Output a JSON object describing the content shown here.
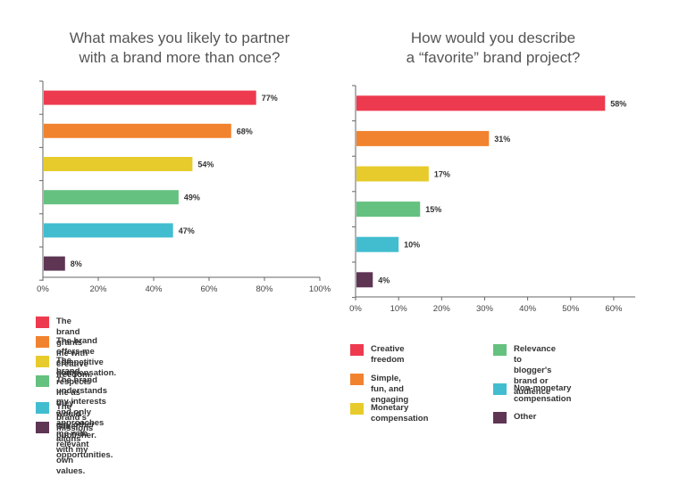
{
  "colors": {
    "red": "#ee3a4f",
    "orange": "#f1832f",
    "yellow": "#e7cb2c",
    "green": "#65c17f",
    "teal": "#42bdd0",
    "purple": "#5e3553",
    "axis": "#666666",
    "title": "#555555"
  },
  "chart_data": [
    {
      "type": "bar",
      "orientation": "horizontal",
      "title": "What makes you likely to partner with a brand more than once?",
      "title_lines": [
        "What makes you likely to partner",
        "with a brand more than once?"
      ],
      "categories": [
        "The brand grants me with creative freedom.",
        "The brand offers me competitive compensation.",
        "The brand respects me as they would any other publisher.",
        "The brand understands my interests and only approaches me with relevant opportunities.",
        "The brand's missions aligns with my own values.",
        "Other"
      ],
      "values": [
        77,
        68,
        54,
        49,
        47,
        8
      ],
      "value_labels": [
        "77%",
        "68%",
        "54%",
        "49%",
        "47%",
        "8%"
      ],
      "xlim": [
        0,
        100
      ],
      "xticks": [
        0,
        20,
        40,
        60,
        80,
        100
      ],
      "xtick_labels": [
        "0%",
        "20%",
        "40%",
        "60%",
        "80%",
        "100%"
      ],
      "grid": false,
      "legend_position": "bottom",
      "legend_lines": [
        [
          "The brand grants me with creative freedom."
        ],
        [
          "The brand offers me competitive compensation."
        ],
        [
          "The brand respects me as they would any other publisher."
        ],
        [
          "The brand understands my interests and only",
          "approaches me with relevant opportunities."
        ],
        [
          "The brand's missions aligns with my own values."
        ],
        [
          "Other"
        ]
      ],
      "colors": [
        "#ee3a4f",
        "#f1832f",
        "#e7cb2c",
        "#65c17f",
        "#42bdd0",
        "#5e3553"
      ]
    },
    {
      "type": "bar",
      "orientation": "horizontal",
      "title": "How would you describe a “favorite” brand project?",
      "title_lines": [
        "How would you describe",
        "a “favorite” brand project?"
      ],
      "categories": [
        "Creative freedom",
        "Simple, fun, and engaging",
        "Monetary compensation",
        "Relevance to blogger's brand or audience",
        "Non-monetary compensation",
        "Other"
      ],
      "values": [
        58,
        31,
        17,
        15,
        10,
        4
      ],
      "value_labels": [
        "58%",
        "31%",
        "17%",
        "15%",
        "10%",
        "4%"
      ],
      "xlim": [
        0,
        65
      ],
      "xticks": [
        0,
        10,
        20,
        30,
        40,
        50,
        60
      ],
      "xtick_labels": [
        "0%",
        "10%",
        "20%",
        "30%",
        "40%",
        "50%",
        "60%"
      ],
      "grid": false,
      "legend_position": "bottom",
      "legend_lines": [
        [
          "Creative freedom"
        ],
        [
          "Simple, fun, and engaging"
        ],
        [
          "Monetary compensation"
        ],
        [
          "Relevance to blogger's",
          "brand or audience"
        ],
        [
          "Non-monetary compensation"
        ],
        [
          "Other"
        ]
      ],
      "colors": [
        "#ee3a4f",
        "#f1832f",
        "#e7cb2c",
        "#65c17f",
        "#42bdd0",
        "#5e3553"
      ]
    }
  ]
}
